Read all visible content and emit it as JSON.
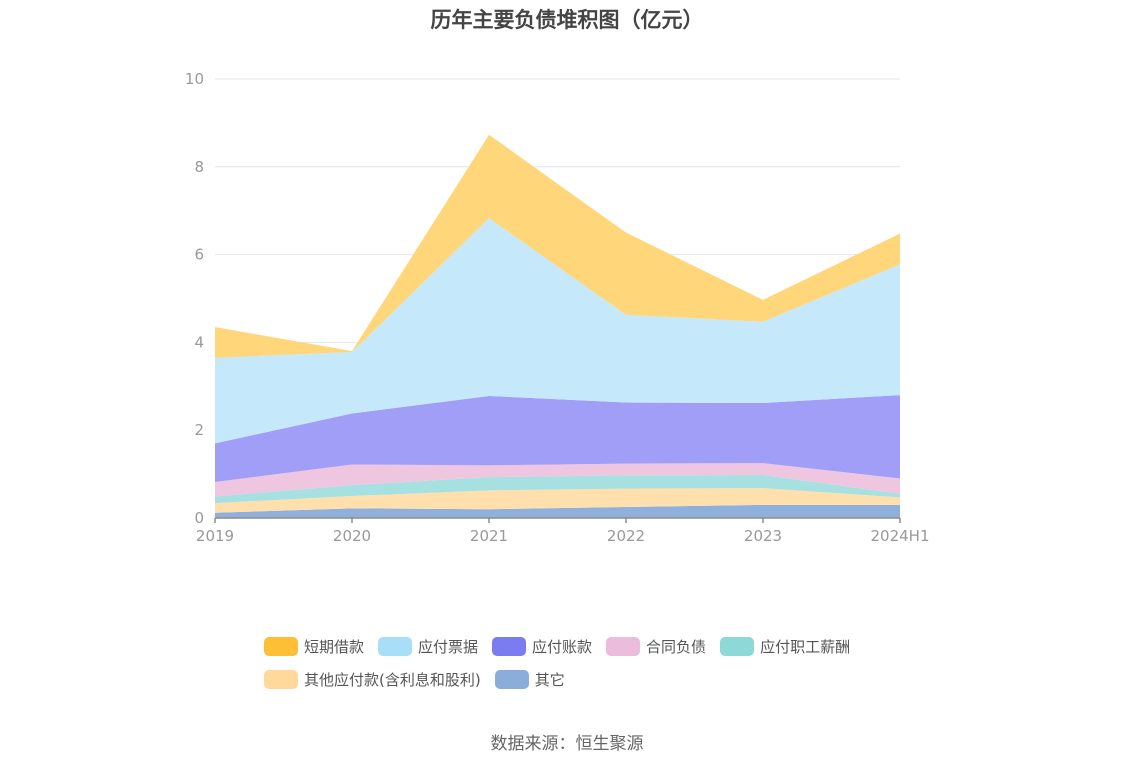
{
  "chart_data": {
    "type": "area",
    "title": "历年主要负债堆积图（亿元）",
    "categories": [
      "2019",
      "2020",
      "2021",
      "2022",
      "2023",
      "2024H1"
    ],
    "ylim": [
      0,
      10
    ],
    "yticks": [
      "0",
      "2",
      "4",
      "6",
      "8",
      "10"
    ],
    "stacked": true,
    "grid": true,
    "legend_position": "bottom",
    "series": [
      {
        "name": "其它",
        "color": "#8fb0dc",
        "values": [
          0.12,
          0.22,
          0.2,
          0.25,
          0.3,
          0.3
        ]
      },
      {
        "name": "其他应付款(含利息和股利)",
        "color": "#ffe0ad",
        "values": [
          0.22,
          0.28,
          0.43,
          0.42,
          0.38,
          0.17
        ]
      },
      {
        "name": "应付职工薪酬",
        "color": "#a6e0e0",
        "values": [
          0.15,
          0.25,
          0.3,
          0.3,
          0.3,
          0.08
        ]
      },
      {
        "name": "合同负债",
        "color": "#efc6e0",
        "values": [
          0.33,
          0.47,
          0.27,
          0.27,
          0.27,
          0.35
        ]
      },
      {
        "name": "应付账款",
        "color": "#a19ef7",
        "values": [
          0.88,
          1.16,
          1.58,
          1.39,
          1.37,
          1.9
        ]
      },
      {
        "name": "应付票据",
        "color": "#c5e8fa",
        "values": [
          1.95,
          1.4,
          4.05,
          2.0,
          1.85,
          2.98
        ]
      },
      {
        "name": "短期借款",
        "color": "#ffd67a",
        "values": [
          0.7,
          0.02,
          1.9,
          1.87,
          0.5,
          0.7
        ]
      }
    ]
  },
  "legend": {
    "row1": [
      {
        "label": "短期借款",
        "color": "#fdbf35"
      },
      {
        "label": "应付票据",
        "color": "#a9def8"
      },
      {
        "label": "应付账款",
        "color": "#7b7cf0"
      },
      {
        "label": "合同负债",
        "color": "#ebbcdc"
      },
      {
        "label": "应付职工薪酬",
        "color": "#8fd8d8"
      }
    ],
    "row2": [
      {
        "label": "其他应付款(含利息和股利)",
        "color": "#ffd99c"
      },
      {
        "label": "其它",
        "color": "#8aadda"
      }
    ]
  },
  "source": "数据来源：恒生聚源"
}
